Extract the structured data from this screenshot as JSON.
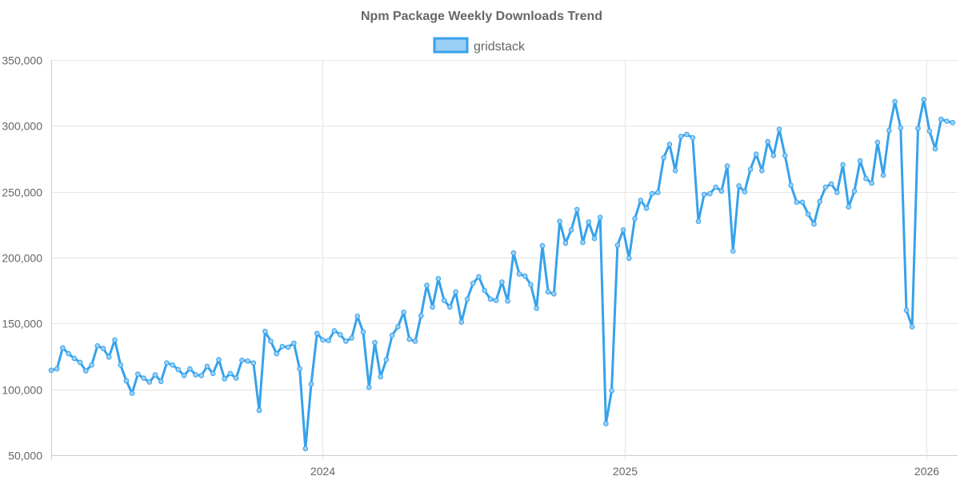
{
  "chart_data": {
    "type": "line",
    "title": "Npm Package Weekly Downloads Trend",
    "xlabel": "",
    "ylabel": "",
    "legend_position": "top",
    "grid": true,
    "ylim": [
      50000,
      350000
    ],
    "yticks": [
      50000,
      100000,
      150000,
      200000,
      250000,
      300000,
      350000
    ],
    "ytick_labels": [
      "50,000",
      "100,000",
      "150,000",
      "200,000",
      "250,000",
      "300,000",
      "350,000"
    ],
    "xlim": [
      "2023-02-06",
      "2026-02-08"
    ],
    "xticks": [
      "2024-01-01",
      "2025-01-01",
      "2026-01-01"
    ],
    "xtick_labels": [
      "2024",
      "2025",
      "2026"
    ],
    "series": [
      {
        "name": "gridstack",
        "color": "#36a2eb",
        "fill": "#9ad0f5",
        "start_date": "2023-02-06",
        "interval_days": 7,
        "values": [
          114500,
          115500,
          131500,
          127000,
          123500,
          120500,
          114000,
          118500,
          133000,
          131000,
          124500,
          137500,
          118500,
          106500,
          97000,
          111500,
          108500,
          105500,
          111000,
          106000,
          120000,
          118500,
          115000,
          110500,
          115500,
          111000,
          110500,
          117500,
          112000,
          122500,
          108000,
          112000,
          108500,
          122000,
          121500,
          120000,
          84000,
          144000,
          136500,
          127000,
          132500,
          132000,
          135000,
          115500,
          55000,
          104000,
          142500,
          137500,
          137000,
          144500,
          141500,
          136500,
          139000,
          155500,
          143500,
          101500,
          135500,
          109500,
          122500,
          141000,
          147500,
          158500,
          138000,
          136500,
          156000,
          179000,
          162500,
          184000,
          167500,
          162500,
          174000,
          151000,
          168500,
          180500,
          185500,
          175000,
          168500,
          167500,
          181500,
          167000,
          203500,
          187500,
          186000,
          179500,
          161500,
          209000,
          174000,
          172500,
          227500,
          211000,
          221000,
          236500,
          211500,
          227000,
          214500,
          230500,
          74000,
          99000,
          209500,
          221000,
          199500,
          229500,
          243500,
          237500,
          248500,
          249500,
          276000,
          286000,
          266000,
          292000,
          293500,
          291000,
          227500,
          248000,
          248500,
          253500,
          250500,
          269500,
          205000,
          254500,
          250000,
          267000,
          278500,
          266000,
          288000,
          277500,
          297500,
          277500,
          255000,
          242000,
          242000,
          233000,
          225500,
          242500,
          253500,
          256000,
          249500,
          270500,
          238500,
          250500,
          273500,
          260000,
          256500,
          287500,
          262500,
          296500,
          318500,
          298500,
          160000,
          147500,
          298000,
          320000,
          296000,
          282500,
          305000,
          303500,
          302500
        ]
      }
    ]
  }
}
